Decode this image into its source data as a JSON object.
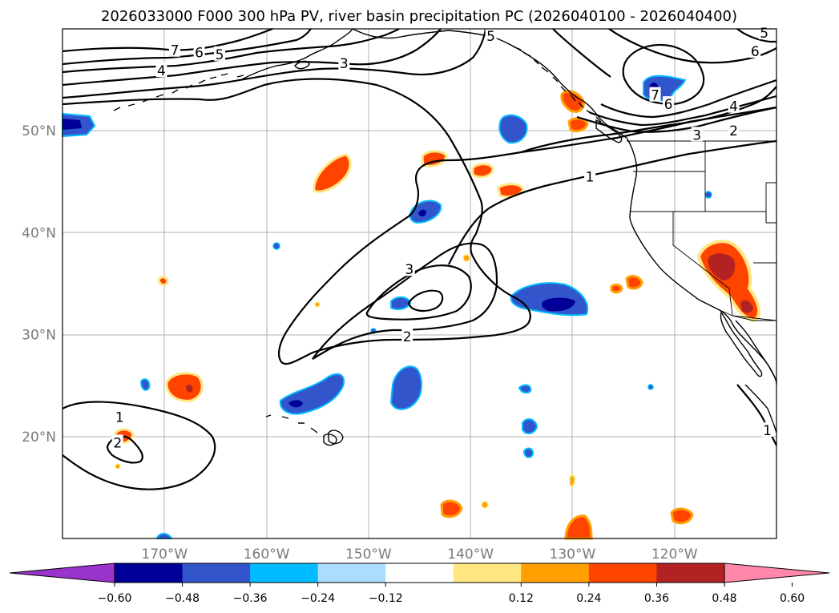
{
  "title": "2026033000 F000 300 hPa PV, river basin precipitation PC (2026040100 - 2026040400)",
  "map": {
    "lon_range": [
      -180,
      -110
    ],
    "lat_range": [
      10,
      60
    ],
    "lat_labels": [
      {
        "lat": 50,
        "text": "50°N"
      },
      {
        "lat": 40,
        "text": "40°N"
      },
      {
        "lat": 30,
        "text": "30°N"
      },
      {
        "lat": 20,
        "text": "20°N"
      }
    ],
    "lon_labels": [
      {
        "lon": -170,
        "text": "170°W"
      },
      {
        "lon": -160,
        "text": "160°W"
      },
      {
        "lon": -150,
        "text": "150°W"
      },
      {
        "lon": -140,
        "text": "140°W"
      },
      {
        "lon": -130,
        "text": "130°W"
      },
      {
        "lon": -120,
        "text": "120°W"
      }
    ],
    "contour_labels": [
      {
        "text": "7",
        "lon": -169.0,
        "lat": 57.9
      },
      {
        "text": "6",
        "lon": -166.6,
        "lat": 57.7
      },
      {
        "text": "5",
        "lon": -164.6,
        "lat": 57.5
      },
      {
        "text": "4",
        "lon": -170.3,
        "lat": 55.9
      },
      {
        "text": "3",
        "lon": -152.4,
        "lat": 56.6
      },
      {
        "text": "5",
        "lon": -138.0,
        "lat": 59.3
      },
      {
        "text": "5",
        "lon": -111.2,
        "lat": 59.6
      },
      {
        "text": "6",
        "lon": -112.1,
        "lat": 57.8
      },
      {
        "text": "7",
        "lon": -121.9,
        "lat": 53.5
      },
      {
        "text": "6",
        "lon": -120.6,
        "lat": 52.6
      },
      {
        "text": "4",
        "lon": -114.2,
        "lat": 52.4
      },
      {
        "text": "2",
        "lon": -114.2,
        "lat": 50.0
      },
      {
        "text": "3",
        "lon": -117.8,
        "lat": 49.6
      },
      {
        "text": "1",
        "lon": -128.3,
        "lat": 45.5
      },
      {
        "text": "3",
        "lon": -146.0,
        "lat": 36.4
      },
      {
        "text": "2",
        "lon": -146.2,
        "lat": 29.8
      },
      {
        "text": "1",
        "lon": -174.4,
        "lat": 21.9
      },
      {
        "text": "2",
        "lon": -174.6,
        "lat": 19.4
      },
      {
        "text": "1",
        "lon": -110.9,
        "lat": 20.6
      }
    ]
  },
  "colorbar": {
    "labels": [
      "−0.60",
      "−0.48",
      "−0.36",
      "−0.24",
      "−0.12",
      "0.12",
      "0.24",
      "0.36",
      "0.48",
      "0.60"
    ],
    "colors": {
      "under": "#9933cc",
      "bins": [
        "#000099",
        "#3355cc",
        "#00bbff",
        "#aaddff",
        "#ffffff",
        "#ffe680",
        "#ffa000",
        "#ff4400",
        "#b22222"
      ],
      "over": "#ff88aa"
    }
  }
}
